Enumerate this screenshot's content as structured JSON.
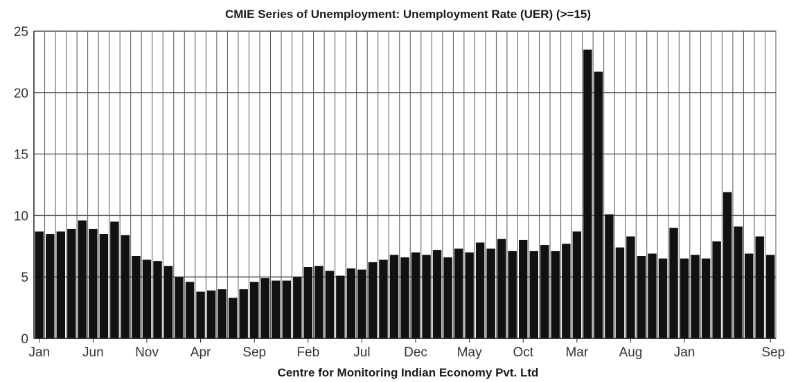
{
  "chart_data": {
    "type": "bar",
    "title": "CMIE Series of Unemployment: Unemployment Rate (UER) (>=15)",
    "xlabel": "Centre for Monitoring Indian Economy Pvt. Ltd",
    "ylabel": "",
    "ylim": [
      0,
      25
    ],
    "y_ticks": [
      0,
      5,
      10,
      15,
      20,
      25
    ],
    "x_tick_labels": [
      {
        "label": "Jan",
        "index": 0
      },
      {
        "label": "Jun",
        "index": 5
      },
      {
        "label": "Nov",
        "index": 10
      },
      {
        "label": "Apr",
        "index": 15
      },
      {
        "label": "Sep",
        "index": 20
      },
      {
        "label": "Feb",
        "index": 25
      },
      {
        "label": "Jul",
        "index": 30
      },
      {
        "label": "Dec",
        "index": 35
      },
      {
        "label": "May",
        "index": 40
      },
      {
        "label": "Oct",
        "index": 45
      },
      {
        "label": "Mar",
        "index": 50
      },
      {
        "label": "Aug",
        "index": 55
      },
      {
        "label": "Jan",
        "index": 60
      },
      {
        "label": "Sep",
        "index": 68
      }
    ],
    "grid": true,
    "bar_color": "#111111",
    "values": [
      8.7,
      8.5,
      8.7,
      8.9,
      9.6,
      8.9,
      8.5,
      9.5,
      8.4,
      6.7,
      6.4,
      6.3,
      5.9,
      5.0,
      4.6,
      3.8,
      3.9,
      4.0,
      3.3,
      4.0,
      4.6,
      4.9,
      4.7,
      4.7,
      5.0,
      5.8,
      5.9,
      5.5,
      5.1,
      5.7,
      5.6,
      6.2,
      6.4,
      6.8,
      6.6,
      7.0,
      6.8,
      7.2,
      6.6,
      7.3,
      7.0,
      7.8,
      7.3,
      8.1,
      7.1,
      8.0,
      7.1,
      7.6,
      7.1,
      7.7,
      8.7,
      23.5,
      21.7,
      10.1,
      7.4,
      8.3,
      6.7,
      6.9,
      6.5,
      9.0,
      6.5,
      6.8,
      6.5,
      7.9,
      11.9,
      9.1,
      6.9,
      8.3,
      6.8
    ]
  }
}
